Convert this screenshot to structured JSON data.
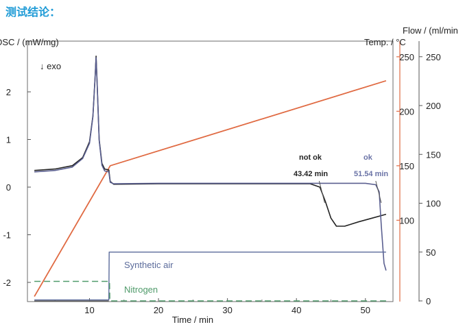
{
  "heading": "测试结论：",
  "chart_data": {
    "type": "line",
    "x_axis": {
      "label": "Time / min",
      "range": [
        1,
        54
      ],
      "ticks": [
        10,
        20,
        30,
        40,
        50
      ]
    },
    "y_axes": {
      "dsc": {
        "label": "DSC / (mW/mg)",
        "range": [
          -2.4,
          2.8
        ],
        "ticks": [
          2,
          1,
          0,
          -1,
          -2
        ],
        "color": "#333333"
      },
      "temp": {
        "label": "Temp. / °C",
        "range": [
          28,
          250
        ],
        "ticks": [
          250,
          200,
          150,
          100
        ],
        "color": "#e06a42"
      },
      "flow": {
        "label": "Flow / (ml/min",
        "range": [
          0,
          250
        ],
        "ticks": [
          250,
          200,
          150,
          100,
          50,
          0
        ],
        "color": "#333333"
      }
    },
    "annotations": {
      "exo": "↓ exo",
      "not_ok": "not ok",
      "not_ok_time": "43.42 min",
      "ok": "ok",
      "ok_time": "51.54 min",
      "synthetic_air": "Synthetic air",
      "nitrogen": "Nitrogen"
    },
    "colors": {
      "dsc_black": "#222222",
      "dsc_blue": "#5a5f90",
      "temperature": "#e06a42",
      "synthetic_air": "#5a6a9a",
      "nitrogen": "#4f9a6a",
      "ok_text": "#6a73a6"
    },
    "series": [
      {
        "axis": "temp",
        "points": [
          [
            2,
            30
          ],
          [
            13,
            150
          ],
          [
            53,
            228
          ]
        ]
      },
      {
        "axis": "dsc",
        "points": [
          [
            2,
            0.35
          ],
          [
            5,
            0.38
          ],
          [
            7.5,
            0.45
          ],
          [
            9,
            0.62
          ],
          [
            10,
            0.95
          ],
          [
            10.5,
            1.5
          ],
          [
            10.8,
            2.3
          ],
          [
            10.95,
            2.75
          ],
          [
            11.1,
            2.2
          ],
          [
            11.4,
            1.0
          ],
          [
            11.8,
            0.5
          ],
          [
            12.2,
            0.38
          ],
          [
            12.8,
            0.36
          ],
          [
            13.0,
            0.12
          ],
          [
            13.5,
            0.06
          ],
          [
            20,
            0.07
          ],
          [
            30,
            0.07
          ],
          [
            40,
            0.07
          ],
          [
            42,
            0.07
          ],
          [
            43.4,
            0.0
          ],
          [
            44.2,
            -0.3
          ],
          [
            45,
            -0.65
          ],
          [
            45.8,
            -0.82
          ],
          [
            47,
            -0.82
          ],
          [
            49,
            -0.73
          ],
          [
            51,
            -0.65
          ],
          [
            53,
            -0.57
          ]
        ]
      },
      {
        "axis": "dsc",
        "points": [
          [
            2,
            0.32
          ],
          [
            5,
            0.35
          ],
          [
            7.5,
            0.42
          ],
          [
            9,
            0.6
          ],
          [
            10,
            0.92
          ],
          [
            10.5,
            1.48
          ],
          [
            10.8,
            2.28
          ],
          [
            10.95,
            2.72
          ],
          [
            11.1,
            2.18
          ],
          [
            11.4,
            0.98
          ],
          [
            11.8,
            0.46
          ],
          [
            12.2,
            0.34
          ],
          [
            12.8,
            0.32
          ],
          [
            13.0,
            0.1
          ],
          [
            13.5,
            0.07
          ],
          [
            20,
            0.08
          ],
          [
            30,
            0.08
          ],
          [
            40,
            0.08
          ],
          [
            50,
            0.08
          ],
          [
            51.5,
            0.05
          ],
          [
            52,
            -0.1
          ],
          [
            52.3,
            -0.8
          ],
          [
            52.7,
            -1.6
          ],
          [
            53.0,
            -1.75
          ]
        ]
      },
      {
        "axis": "flow",
        "points": [
          [
            2,
            1
          ],
          [
            12.8,
            1
          ],
          [
            12.85,
            50
          ],
          [
            53,
            50
          ]
        ]
      },
      {
        "axis": "flow",
        "dashed": true,
        "points": [
          [
            2,
            20
          ],
          [
            12.9,
            20
          ],
          [
            12.95,
            0
          ],
          [
            53,
            0
          ]
        ]
      }
    ]
  }
}
